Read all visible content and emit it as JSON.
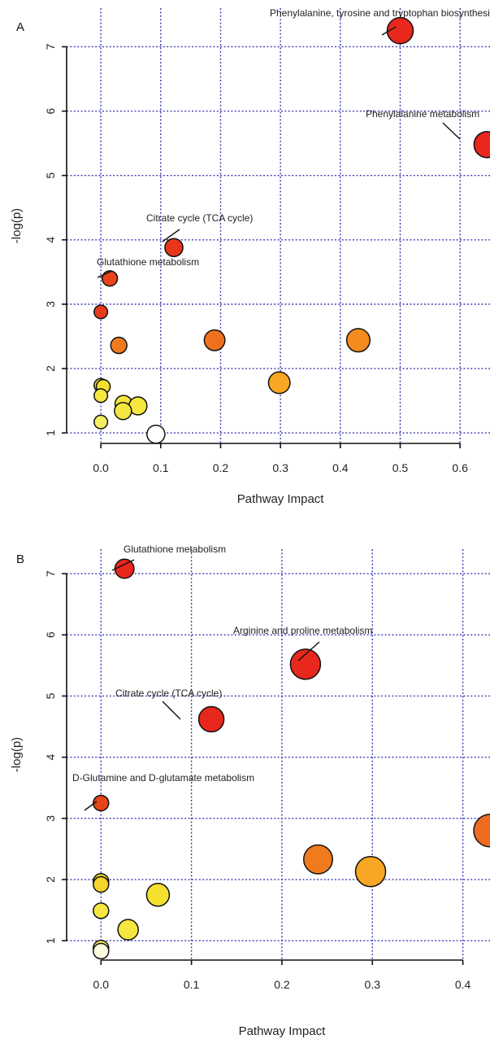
{
  "chart_data": [
    {
      "panel": "A",
      "type": "scatter",
      "xlabel": "Pathway Impact",
      "ylabel": "-log(p)",
      "xlim": [
        -0.03,
        0.65
      ],
      "ylim": [
        0.9,
        7.6
      ],
      "xticks": [
        0.0,
        0.1,
        0.2,
        0.3,
        0.4,
        0.5,
        0.6
      ],
      "xtick_labels": [
        "0.0",
        "0.1",
        "0.2",
        "0.3",
        "0.4",
        "0.5",
        "0.6"
      ],
      "yticks": [
        1,
        2,
        3,
        4,
        5,
        6,
        7
      ],
      "ytick_labels": [
        "1",
        "2",
        "3",
        "4",
        "5",
        "6",
        "7"
      ],
      "grid": true,
      "points": [
        {
          "x": 0.5,
          "y": 7.25,
          "size": 1.0,
          "color": "#e8271d",
          "label": "Phenylalanine, tyrosine and tryptophan biosynthesis"
        },
        {
          "x": 0.645,
          "y": 5.48,
          "size": 1.0,
          "color": "#e8271d",
          "label": "Phenylalanine metabolism"
        },
        {
          "x": 0.122,
          "y": 3.88,
          "size": 0.55,
          "color": "#e8351b",
          "label": "Citrate cycle (TCA cycle)"
        },
        {
          "x": 0.015,
          "y": 3.4,
          "size": 0.4,
          "color": "#e8441a",
          "label": "Glutathione metabolism"
        },
        {
          "x": 0.0,
          "y": 2.88,
          "size": 0.3,
          "color": "#e63c1b"
        },
        {
          "x": 0.03,
          "y": 2.36,
          "size": 0.45,
          "color": "#f07a1e"
        },
        {
          "x": 0.19,
          "y": 2.44,
          "size": 0.7,
          "color": "#f07020"
        },
        {
          "x": 0.43,
          "y": 2.44,
          "size": 0.85,
          "color": "#f38b1f"
        },
        {
          "x": 0.298,
          "y": 1.78,
          "size": 0.75,
          "color": "#f8a623"
        },
        {
          "x": 0.0,
          "y": 1.74,
          "size": 0.3,
          "color": "#f5e030"
        },
        {
          "x": 0.004,
          "y": 1.72,
          "size": 0.32,
          "color": "#f5e030"
        },
        {
          "x": 0.0,
          "y": 1.58,
          "size": 0.3,
          "color": "#f5e640"
        },
        {
          "x": 0.038,
          "y": 1.45,
          "size": 0.5,
          "color": "#f5e640"
        },
        {
          "x": 0.062,
          "y": 1.42,
          "size": 0.55,
          "color": "#f5e640"
        },
        {
          "x": 0.037,
          "y": 1.34,
          "size": 0.5,
          "color": "#f5e640"
        },
        {
          "x": 0.0,
          "y": 1.17,
          "size": 0.3,
          "color": "#f5ee60"
        },
        {
          "x": 0.092,
          "y": 0.98,
          "size": 0.55,
          "color": "#ffffff"
        }
      ]
    },
    {
      "panel": "B",
      "type": "scatter",
      "xlabel": "Pathway Impact",
      "ylabel": "-log(p)",
      "xlim": [
        -0.02,
        0.43
      ],
      "ylim": [
        0.75,
        7.4
      ],
      "xticks": [
        0.0,
        0.1,
        0.2,
        0.3,
        0.4
      ],
      "xtick_labels": [
        "0.0",
        "0.1",
        "0.2",
        "0.3",
        "0.4"
      ],
      "yticks": [
        1,
        2,
        3,
        4,
        5,
        6,
        7
      ],
      "ytick_labels": [
        "1",
        "2",
        "3",
        "4",
        "5",
        "6",
        "7"
      ],
      "grid": true,
      "points": [
        {
          "x": 0.026,
          "y": 7.08,
          "size": 0.45,
          "color": "#e8271d",
          "label": "Glutathione metabolism"
        },
        {
          "x": 0.226,
          "y": 5.52,
          "size": 0.9,
          "color": "#e8271d",
          "label": "Arginine and proline metabolism"
        },
        {
          "x": 0.122,
          "y": 4.62,
          "size": 0.7,
          "color": "#e8271d",
          "label": "Citrate cycle (TCA cycle)"
        },
        {
          "x": 0.0,
          "y": 3.25,
          "size": 0.3,
          "color": "#e8441a",
          "label": "D-Glutamine and D-glutamate metabolism"
        },
        {
          "x": 0.43,
          "y": 2.8,
          "size": 1.0,
          "color": "#ee6b20"
        },
        {
          "x": 0.24,
          "y": 2.33,
          "size": 0.85,
          "color": "#f07a1e"
        },
        {
          "x": 0.298,
          "y": 2.13,
          "size": 0.9,
          "color": "#f8a623"
        },
        {
          "x": 0.0,
          "y": 1.97,
          "size": 0.3,
          "color": "#f5d52c"
        },
        {
          "x": 0.0,
          "y": 1.92,
          "size": 0.3,
          "color": "#f5d52c"
        },
        {
          "x": 0.063,
          "y": 1.75,
          "size": 0.6,
          "color": "#f5e030"
        },
        {
          "x": 0.0,
          "y": 1.49,
          "size": 0.3,
          "color": "#f5e640"
        },
        {
          "x": 0.03,
          "y": 1.18,
          "size": 0.5,
          "color": "#f5e640"
        },
        {
          "x": 0.0,
          "y": 0.88,
          "size": 0.3,
          "color": "#f5ee60"
        },
        {
          "x": 0.0,
          "y": 0.83,
          "size": 0.3,
          "color": "#fffde0"
        }
      ]
    }
  ]
}
